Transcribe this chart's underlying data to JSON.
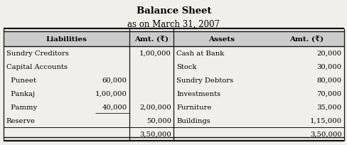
{
  "title": "Balance Sheet",
  "subtitle": "as on March 31, 2007",
  "rows": [
    [
      "Sundry Creditors",
      "",
      "1,00,000",
      "Cash at Bank",
      "20,000"
    ],
    [
      "Capital Accounts",
      "",
      "",
      "Stock",
      "30,000"
    ],
    [
      "  Puneet",
      "60,000",
      "",
      "Sundry Debtors",
      "80,000"
    ],
    [
      "  Pankaj",
      "1,00,000",
      "",
      "Investments",
      "70,000"
    ],
    [
      "  Pammy",
      "40,000",
      "2,00,000",
      "Furniture",
      "35,000"
    ],
    [
      "Reserve",
      "",
      "50,000",
      "Buildings",
      "1,15,000"
    ],
    [
      "",
      "",
      "3,50,000",
      "",
      "3,50,000"
    ]
  ],
  "bg_color": "#f0efea",
  "header_bg": "#cccccc",
  "title_fontsize": 9.5,
  "subtitle_fontsize": 8.5,
  "header_fontsize": 7.5,
  "cell_fontsize": 7.2,
  "line_color": "#111111"
}
